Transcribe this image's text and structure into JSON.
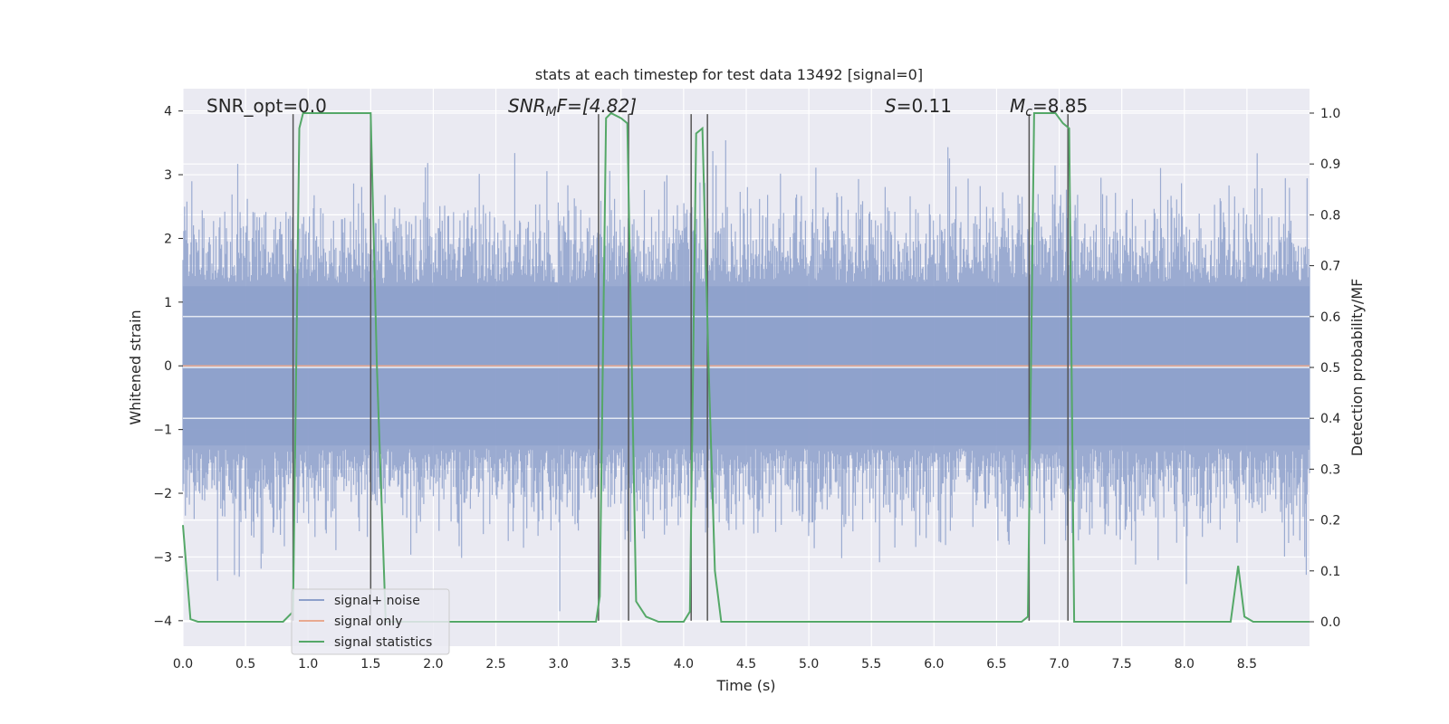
{
  "chart_data": {
    "type": "line",
    "title": "stats at each timestep for test data 13492 [signal=0]",
    "xlabel": "Time (s)",
    "ylabel_left": "Whitened strain",
    "ylabel_right": "Detection probability/MF",
    "xlim": [
      0,
      9.0
    ],
    "ylim_left": [
      -4.4,
      4.35
    ],
    "ylim_right": [
      -0.048,
      1.048
    ],
    "x_ticks": [
      "0.0",
      "0.5",
      "1.0",
      "1.5",
      "2.0",
      "2.5",
      "3.0",
      "3.5",
      "4.0",
      "4.5",
      "5.0",
      "5.5",
      "6.0",
      "6.5",
      "7.0",
      "7.5",
      "8.0",
      "8.5"
    ],
    "y_left_ticks": [
      "4",
      "3",
      "2",
      "1",
      "0",
      "−1",
      "−2",
      "−3",
      "−4"
    ],
    "y_right_ticks": [
      "1.0",
      "0.9",
      "0.8",
      "0.7",
      "0.6",
      "0.5",
      "0.4",
      "0.3",
      "0.2",
      "0.1",
      "0.0"
    ],
    "grid": true,
    "legend_position": "lower-left",
    "annotations": {
      "snr_opt": "SNR_opt=0.0",
      "snr_mf_main": "SNR",
      "snr_mf_sub": "M",
      "snr_mf_rest": "F=[4.82]",
      "s_main": "S",
      "s_rest": "=0.11",
      "mc_main": "M",
      "mc_sub": "c",
      "mc_rest": "=8.85"
    },
    "series": [
      {
        "name": "signal+ noise",
        "color": "#8da0cb",
        "note": "noise band roughly between -4 and 3.6"
      },
      {
        "name": "signal only",
        "color": "#e8a990",
        "values_constant": 0.0
      },
      {
        "name": "signal statistics",
        "color": "#55a868",
        "x": [
          0.0,
          0.06,
          0.12,
          0.8,
          0.88,
          0.93,
          0.96,
          1.5,
          1.55,
          1.62,
          3.3,
          3.33,
          3.38,
          3.42,
          3.5,
          3.55,
          3.62,
          3.7,
          3.8,
          4.0,
          4.05,
          4.1,
          4.15,
          4.2,
          4.25,
          4.3,
          6.7,
          6.75,
          6.8,
          6.85,
          6.97,
          7.03,
          7.08,
          7.12,
          7.15,
          8.37,
          8.43,
          8.48,
          8.55,
          9.0
        ],
        "values": [
          0.19,
          0.005,
          0.0,
          0.0,
          0.02,
          0.97,
          1.0,
          1.0,
          0.5,
          0.0,
          0.0,
          0.05,
          0.99,
          1.0,
          0.99,
          0.98,
          0.04,
          0.01,
          0.0,
          0.0,
          0.02,
          0.96,
          0.97,
          0.5,
          0.1,
          0.0,
          0.0,
          0.01,
          1.0,
          1.0,
          1.0,
          0.98,
          0.97,
          0.0,
          0.0,
          0.0,
          0.11,
          0.01,
          0.0,
          0.0
        ]
      }
    ],
    "vertical_markers_x": [
      0.88,
      1.5,
      3.32,
      3.56,
      4.06,
      4.19,
      6.76,
      7.07
    ]
  }
}
